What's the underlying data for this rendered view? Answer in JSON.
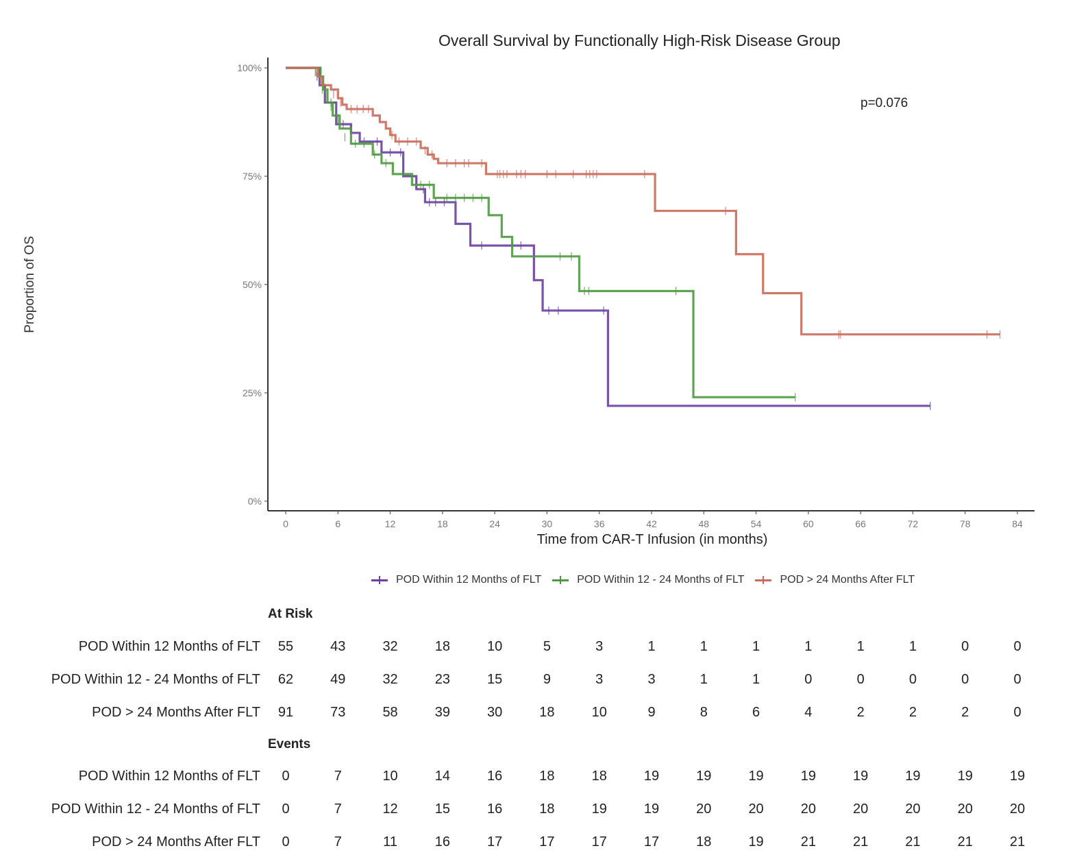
{
  "chart_data": {
    "type": "line",
    "subtype": "kaplan-meier step",
    "title": "Overall Survival by Functionally High-Risk Disease Group",
    "xlabel": "Time from CAR-T Infusion (in months)",
    "ylabel": "Proportion of OS",
    "xlim": [
      0,
      84
    ],
    "ylim": [
      0,
      100
    ],
    "xticks": [
      "0",
      "6",
      "12",
      "18",
      "24",
      "30",
      "36",
      "42",
      "48",
      "54",
      "60",
      "66",
      "72",
      "78",
      "84"
    ],
    "yticks": [
      "0%",
      "25%",
      "50%",
      "75%",
      "100%"
    ],
    "ytick_values": [
      0,
      25,
      50,
      75,
      100
    ],
    "xtick_values": [
      0,
      6,
      12,
      18,
      24,
      30,
      36,
      42,
      48,
      54,
      60,
      66,
      72,
      78,
      84
    ],
    "grid": false,
    "legend_position": "bottom",
    "annotation": "p=0.076",
    "series": [
      {
        "name": "POD Within 12 Months of FLT",
        "color": "#6a3fa0",
        "steps": [
          [
            0,
            100
          ],
          [
            3.8,
            100
          ],
          [
            3.9,
            96
          ],
          [
            4.5,
            92
          ],
          [
            5.8,
            87
          ],
          [
            7.5,
            85
          ],
          [
            8.5,
            83
          ],
          [
            11,
            80.5
          ],
          [
            13.5,
            75
          ],
          [
            15,
            72
          ],
          [
            16,
            69
          ],
          [
            19.5,
            64
          ],
          [
            21.2,
            59
          ],
          [
            28.5,
            51
          ],
          [
            29.5,
            44
          ],
          [
            37,
            22
          ],
          [
            74,
            22
          ]
        ],
        "censor_times": [
          [
            3.6,
            98
          ],
          [
            5.2,
            92
          ],
          [
            6.6,
            87
          ],
          [
            9,
            83
          ],
          [
            10.5,
            83
          ],
          [
            12,
            80.5
          ],
          [
            13.2,
            80.5
          ],
          [
            15.8,
            72
          ],
          [
            16.5,
            69
          ],
          [
            17.2,
            69
          ],
          [
            18.2,
            69
          ],
          [
            22.5,
            59
          ],
          [
            26,
            59
          ],
          [
            27,
            59
          ],
          [
            30.2,
            44
          ],
          [
            31.3,
            44
          ],
          [
            36.5,
            44
          ],
          [
            74,
            22
          ]
        ]
      },
      {
        "name": "POD Within 12 - 24 Months of FLT",
        "color": "#4c9a3f",
        "steps": [
          [
            0,
            100
          ],
          [
            3.2,
            100
          ],
          [
            4,
            98
          ],
          [
            4.3,
            95
          ],
          [
            4.8,
            92
          ],
          [
            5.4,
            89
          ],
          [
            6.2,
            86
          ],
          [
            7.5,
            82.5
          ],
          [
            10,
            80
          ],
          [
            11,
            78
          ],
          [
            12.3,
            75.5
          ],
          [
            14.5,
            73
          ],
          [
            17,
            70
          ],
          [
            23.3,
            66
          ],
          [
            24.8,
            61
          ],
          [
            26,
            56.5
          ],
          [
            33.7,
            48.5
          ],
          [
            46.8,
            24
          ],
          [
            58.5,
            24
          ]
        ],
        "censor_times": [
          [
            3.4,
            99
          ],
          [
            3.8,
            97
          ],
          [
            4.2,
            95
          ],
          [
            4.6,
            93
          ],
          [
            5.2,
            91
          ],
          [
            6,
            88
          ],
          [
            6.8,
            84
          ],
          [
            8,
            82.5
          ],
          [
            9,
            82.5
          ],
          [
            10.2,
            80
          ],
          [
            11.5,
            78
          ],
          [
            15.5,
            73
          ],
          [
            16.5,
            73
          ],
          [
            18.5,
            70
          ],
          [
            19.5,
            70
          ],
          [
            20.5,
            70
          ],
          [
            21.5,
            70
          ],
          [
            22.5,
            70
          ],
          [
            31.5,
            56.5
          ],
          [
            32.8,
            56.5
          ],
          [
            34.3,
            48.5
          ],
          [
            34.8,
            48.5
          ],
          [
            44.8,
            48.5
          ],
          [
            58.5,
            24
          ]
        ]
      },
      {
        "name": "POD > 24 Months After FLT",
        "color": "#c96a5a",
        "steps": [
          [
            0,
            100
          ],
          [
            3.3,
            100
          ],
          [
            3.7,
            98
          ],
          [
            4.2,
            96
          ],
          [
            5.2,
            95
          ],
          [
            6,
            93
          ],
          [
            6.5,
            91.5
          ],
          [
            7,
            90.5
          ],
          [
            10,
            89
          ],
          [
            10.8,
            87.5
          ],
          [
            11.5,
            86
          ],
          [
            12,
            84.5
          ],
          [
            12.6,
            83
          ],
          [
            15.5,
            81.5
          ],
          [
            16.3,
            80
          ],
          [
            17,
            79
          ],
          [
            17.5,
            78
          ],
          [
            23,
            75.5
          ],
          [
            42.2,
            75.5
          ],
          [
            42.4,
            67
          ],
          [
            51.5,
            67
          ],
          [
            51.7,
            57
          ],
          [
            54.6,
            57
          ],
          [
            54.8,
            48
          ],
          [
            59,
            48
          ],
          [
            59.2,
            38.5
          ],
          [
            82,
            38.5
          ]
        ],
        "censor_times": [
          [
            3.5,
            99
          ],
          [
            4,
            97
          ],
          [
            4.6,
            95
          ],
          [
            5.5,
            94
          ],
          [
            6.3,
            92
          ],
          [
            7.5,
            90.5
          ],
          [
            8.2,
            90.5
          ],
          [
            8.9,
            90.5
          ],
          [
            9.5,
            90.5
          ],
          [
            12.2,
            84.5
          ],
          [
            13,
            83
          ],
          [
            14,
            83
          ],
          [
            15,
            83
          ],
          [
            16,
            81
          ],
          [
            16.8,
            80
          ],
          [
            18.5,
            78
          ],
          [
            19.5,
            78
          ],
          [
            20.5,
            78
          ],
          [
            21,
            78
          ],
          [
            22.5,
            78
          ],
          [
            24.3,
            75.5
          ],
          [
            24.6,
            75.5
          ],
          [
            25,
            75.5
          ],
          [
            25.4,
            75.5
          ],
          [
            26.5,
            75.5
          ],
          [
            27,
            75.5
          ],
          [
            27.5,
            75.5
          ],
          [
            30,
            75.5
          ],
          [
            31,
            75.5
          ],
          [
            33,
            75.5
          ],
          [
            34.5,
            75.5
          ],
          [
            34.9,
            75.5
          ],
          [
            35.3,
            75.5
          ],
          [
            35.7,
            75.5
          ],
          [
            41.2,
            75.5
          ],
          [
            50.5,
            67
          ],
          [
            63.5,
            38.5
          ],
          [
            63.7,
            38.5
          ],
          [
            80.5,
            38.5
          ],
          [
            82,
            38.5
          ]
        ]
      }
    ]
  },
  "risk_table": {
    "at_risk_heading": "At Risk",
    "events_heading": "Events",
    "time_points": [
      0,
      6,
      12,
      18,
      24,
      30,
      36,
      42,
      48,
      54,
      60,
      66,
      72,
      78,
      84
    ],
    "at_risk": [
      {
        "label": "POD Within 12 Months of FLT",
        "values": [
          55,
          43,
          32,
          18,
          10,
          5,
          3,
          1,
          1,
          1,
          1,
          1,
          1,
          0,
          0
        ]
      },
      {
        "label": "POD Within 12 - 24 Months of FLT",
        "values": [
          62,
          49,
          32,
          23,
          15,
          9,
          3,
          3,
          1,
          1,
          0,
          0,
          0,
          0,
          0
        ]
      },
      {
        "label": "POD > 24 Months After FLT",
        "values": [
          91,
          73,
          58,
          39,
          30,
          18,
          10,
          9,
          8,
          6,
          4,
          2,
          2,
          2,
          0
        ]
      }
    ],
    "events": [
      {
        "label": "POD Within 12 Months of FLT",
        "values": [
          0,
          7,
          10,
          14,
          16,
          18,
          18,
          19,
          19,
          19,
          19,
          19,
          19,
          19,
          19
        ]
      },
      {
        "label": "POD Within 12 - 24 Months of FLT",
        "values": [
          0,
          7,
          12,
          15,
          16,
          18,
          19,
          19,
          20,
          20,
          20,
          20,
          20,
          20,
          20
        ]
      },
      {
        "label": "POD > 24 Months After FLT",
        "values": [
          0,
          7,
          11,
          16,
          17,
          17,
          17,
          17,
          18,
          19,
          21,
          21,
          21,
          21,
          21
        ]
      }
    ]
  }
}
